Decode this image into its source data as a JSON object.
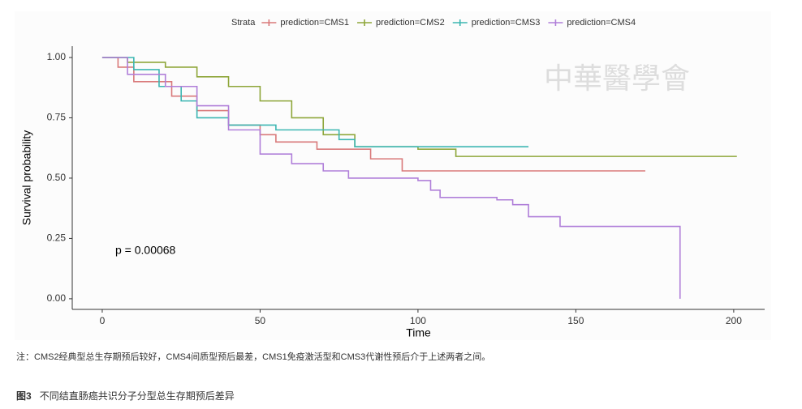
{
  "chart_data": {
    "type": "step",
    "legend_title": "Strata",
    "xlabel": "Time",
    "ylabel": "Survival probability",
    "annotation": "p = 0.00068",
    "xlim": [
      -9.5,
      209.8
    ],
    "xticks": [
      0,
      50,
      100,
      150,
      200
    ],
    "ylim": [
      -0.044,
      1.047
    ],
    "yticks": [
      {
        "value": 0,
        "label": "0.00"
      },
      {
        "value": 0.25,
        "label": "0.25"
      },
      {
        "value": 0.5,
        "label": "0.50"
      },
      {
        "value": 0.75,
        "label": "0.75"
      },
      {
        "value": 1,
        "label": "1.00"
      }
    ],
    "legend": "top",
    "series": [
      {
        "name": "prediction=CMS1",
        "color": "#d9797a",
        "x": [
          0,
          5,
          10,
          22,
          30,
          40,
          50,
          55,
          68,
          85,
          95,
          172
        ],
        "values": [
          1,
          0.96,
          0.9,
          0.84,
          0.78,
          0.72,
          0.68,
          0.65,
          0.62,
          0.58,
          0.53,
          0.53
        ]
      },
      {
        "name": "prediction=CMS2",
        "color": "#8ea63a",
        "x": [
          0,
          8,
          20,
          30,
          40,
          50,
          60,
          70,
          80,
          100,
          112,
          201
        ],
        "values": [
          1,
          0.98,
          0.96,
          0.92,
          0.88,
          0.82,
          0.75,
          0.68,
          0.63,
          0.62,
          0.59,
          0.59
        ]
      },
      {
        "name": "prediction=CMS3",
        "color": "#3cb6b2",
        "x": [
          0,
          10,
          18,
          25,
          30,
          40,
          55,
          75,
          80,
          135
        ],
        "values": [
          1,
          0.95,
          0.88,
          0.82,
          0.75,
          0.72,
          0.7,
          0.66,
          0.63,
          0.63
        ]
      },
      {
        "name": "prediction=CMS4",
        "color": "#b07fd9",
        "x": [
          0,
          8,
          20,
          30,
          40,
          50,
          60,
          70,
          78,
          100,
          104,
          107,
          125,
          130,
          135,
          145,
          183,
          183
        ],
        "values": [
          1,
          0.93,
          0.88,
          0.8,
          0.7,
          0.6,
          0.56,
          0.53,
          0.5,
          0.49,
          0.45,
          0.42,
          0.41,
          0.39,
          0.34,
          0.3,
          0.3,
          0
        ]
      }
    ]
  },
  "watermark": "中華醫學會",
  "note": "注：CMS2经典型总生存期预后较好，CMS4间质型预后最差，CMS1免疫激活型和CMS3代谢性预后介于上述两者之间。",
  "caption": {
    "label": "图3",
    "text": "不同结直肠癌共识分子分型总生存期预后差异"
  }
}
